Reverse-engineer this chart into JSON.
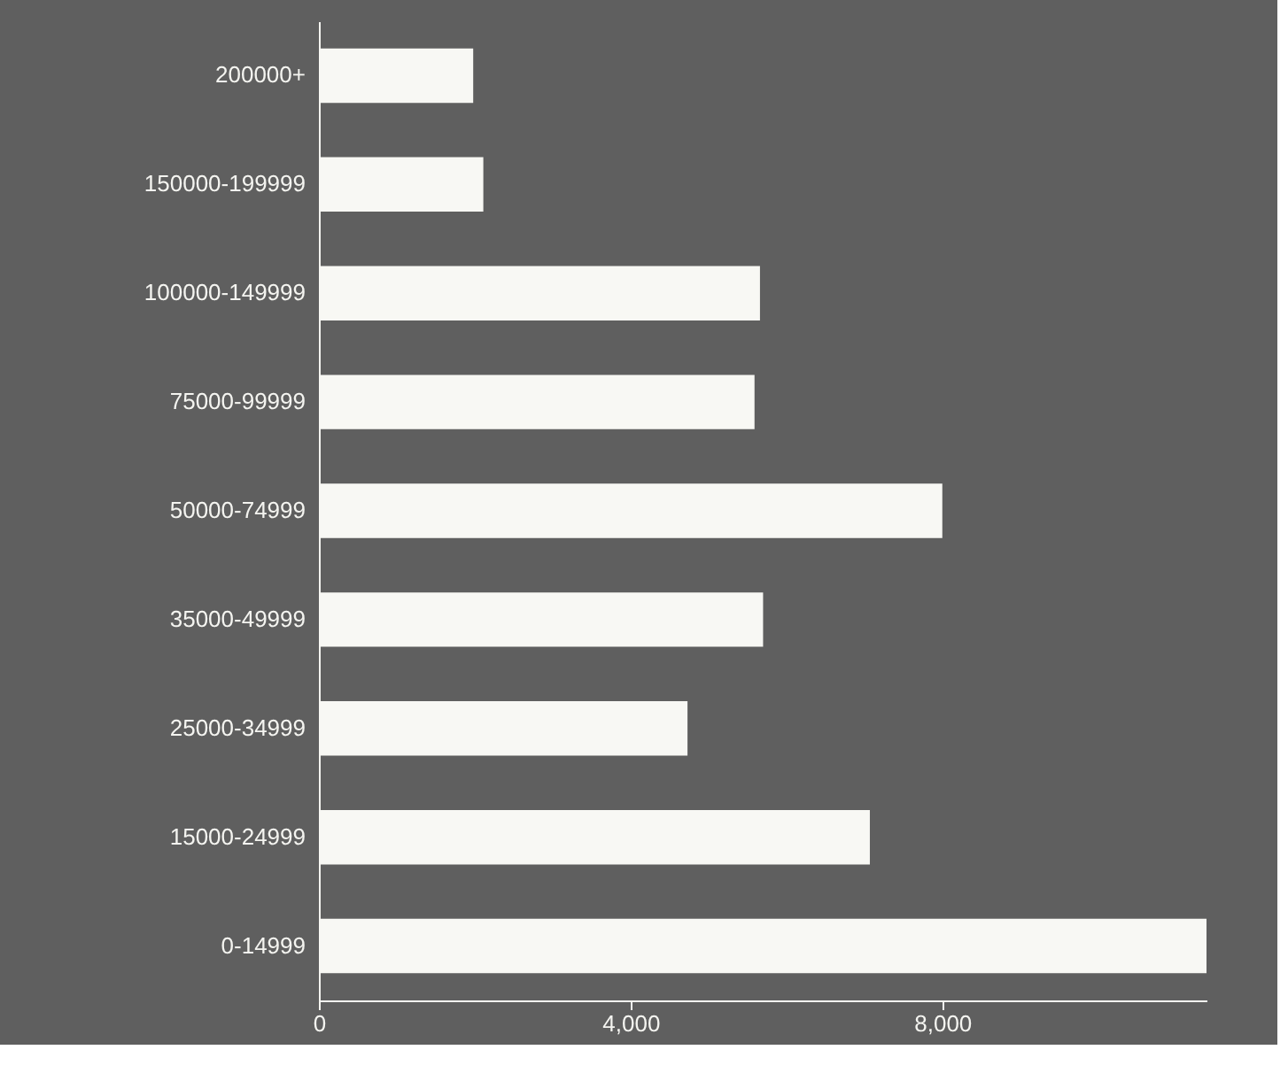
{
  "chart_data": {
    "type": "bar",
    "orientation": "horizontal",
    "categories": [
      "200000+",
      "150000-199999",
      "100000-149999",
      "75000-99999",
      "50000-74999",
      "35000-49999",
      "25000-34999",
      "15000-24999",
      "0-14999"
    ],
    "values": [
      1980,
      2110,
      5660,
      5590,
      8000,
      5700,
      4730,
      7070,
      11390
    ],
    "color": "#f8f8f4",
    "xlim": [
      0,
      11390
    ],
    "xticks": [
      0,
      {
        "value": 4000,
        "label": "4,000"
      },
      {
        "value": 8000,
        "label": "8,000"
      }
    ],
    "grid": false
  }
}
